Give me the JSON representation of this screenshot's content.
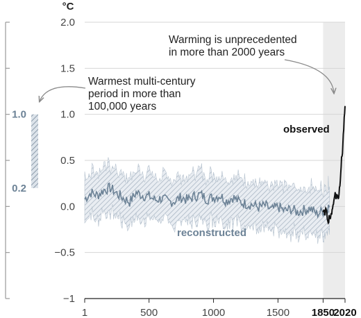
{
  "chart_data": {
    "type": "line",
    "unit_label": "°C",
    "y_ticks": [
      "2.0",
      "1.5",
      "1.0",
      "0.5",
      "0.0",
      "−0.5",
      "−1"
    ],
    "y_tick_values": [
      2.0,
      1.5,
      1.0,
      0.5,
      0.0,
      -0.5,
      -1.0
    ],
    "x_ticks": [
      "1",
      "500",
      "1000",
      "1500",
      "1850",
      "2020"
    ],
    "x_tick_values": [
      1,
      500,
      1000,
      1500,
      1850,
      2020
    ],
    "bold_x_ticks": [
      "1850",
      "2020"
    ],
    "ylim": [
      -1,
      2
    ],
    "xlim": [
      1,
      2020
    ],
    "grid": "horizontal",
    "shaded_period": [
      1850,
      2020
    ],
    "series": [
      {
        "name": "reconstructed",
        "color": "#6c8296",
        "x": [
          1,
          50,
          100,
          150,
          200,
          250,
          300,
          350,
          400,
          450,
          500,
          550,
          600,
          650,
          700,
          750,
          800,
          850,
          900,
          950,
          1000,
          1050,
          1100,
          1150,
          1200,
          1250,
          1300,
          1350,
          1400,
          1450,
          1500,
          1550,
          1600,
          1650,
          1700,
          1750,
          1800,
          1850,
          1880,
          1900
        ],
        "values": [
          0.08,
          0.15,
          0.12,
          0.18,
          0.2,
          0.14,
          0.09,
          0.05,
          0.15,
          0.12,
          0.11,
          0.07,
          0.09,
          0.05,
          0.06,
          0.1,
          0.07,
          0.11,
          0.13,
          0.08,
          0.1,
          0.12,
          0.06,
          0.1,
          0.05,
          0.03,
          0.02,
          -0.01,
          0.01,
          -0.04,
          0.0,
          -0.05,
          -0.03,
          -0.06,
          -0.04,
          -0.02,
          -0.08,
          -0.05,
          -0.02,
          0.0
        ],
        "uncertainty": 0.25
      },
      {
        "name": "observed",
        "color": "#111111",
        "x": [
          1850,
          1870,
          1890,
          1900,
          1910,
          1920,
          1930,
          1940,
          1950,
          1960,
          1970,
          1980,
          1990,
          2000,
          2010,
          2020
        ],
        "values": [
          -0.08,
          -0.05,
          -0.15,
          -0.1,
          -0.13,
          -0.02,
          0.02,
          0.15,
          0.1,
          0.12,
          0.1,
          0.25,
          0.45,
          0.6,
          0.85,
          1.09
        ]
      }
    ],
    "side_bar": {
      "range": [
        0.2,
        1.0
      ],
      "tick_labels": [
        "1.0",
        "0.2"
      ]
    },
    "annotations": {
      "side_bar_note": [
        "Warmest multi-century",
        "period in more than",
        "100,000 years"
      ],
      "observed_note": [
        "Warming is unprecedented",
        "in more than 2000 years"
      ]
    }
  }
}
